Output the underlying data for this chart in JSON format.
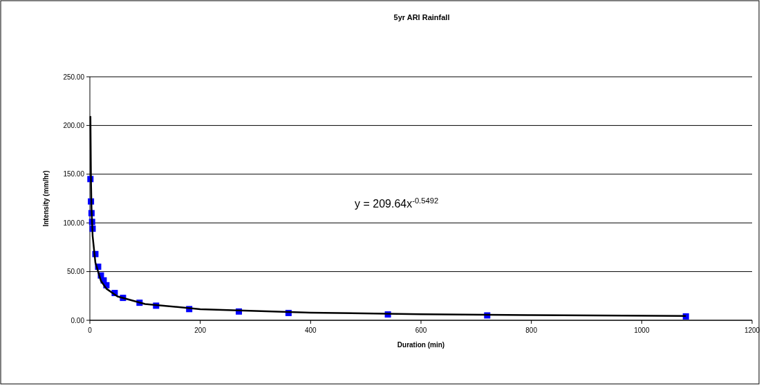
{
  "chart_data": {
    "type": "scatter",
    "title": "5yr ARI Rainfall",
    "xlabel": "Duration (min)",
    "ylabel": "Intensity (mm/hr)",
    "xlim": [
      0,
      1200
    ],
    "xticks": [
      0,
      200,
      400,
      600,
      800,
      1000,
      1200
    ],
    "ylim": [
      0,
      250
    ],
    "yticks": [
      {
        "value": 0,
        "label": "0.00"
      },
      {
        "value": 50,
        "label": "50.00"
      },
      {
        "value": 100,
        "label": "100.00"
      },
      {
        "value": 150,
        "label": "150.00"
      },
      {
        "value": 200,
        "label": "200.00"
      },
      {
        "value": 250,
        "label": "250.00"
      }
    ],
    "grid": "y",
    "marker": "square",
    "annotations": [
      "y = 209.64x$^{-0.5492}$"
    ],
    "series": [
      {
        "color": "#0000ff",
        "x": [
          1,
          2,
          3,
          4,
          5,
          10,
          15,
          20,
          25,
          30,
          45,
          60,
          90,
          120,
          180,
          270,
          360,
          540,
          720,
          1080
        ],
        "values": [
          145,
          122,
          110,
          101,
          94,
          68,
          55,
          46,
          41,
          36,
          28,
          23,
          18,
          15,
          11.5,
          9,
          7.5,
          6,
          5,
          4
        ]
      },
      {
        "type": "line",
        "color": "#000000",
        "marker": "none",
        "line_style": "solid",
        "x": [
          1,
          2,
          3,
          5,
          10,
          20,
          30,
          50,
          100,
          200,
          400,
          600,
          800,
          1080
        ],
        "values": [
          209.6,
          143.3,
          114.7,
          86.6,
          59.2,
          40.5,
          32.4,
          24.5,
          16.7,
          11.4,
          7.8,
          6.2,
          5.3,
          4.5
        ]
      }
    ]
  }
}
